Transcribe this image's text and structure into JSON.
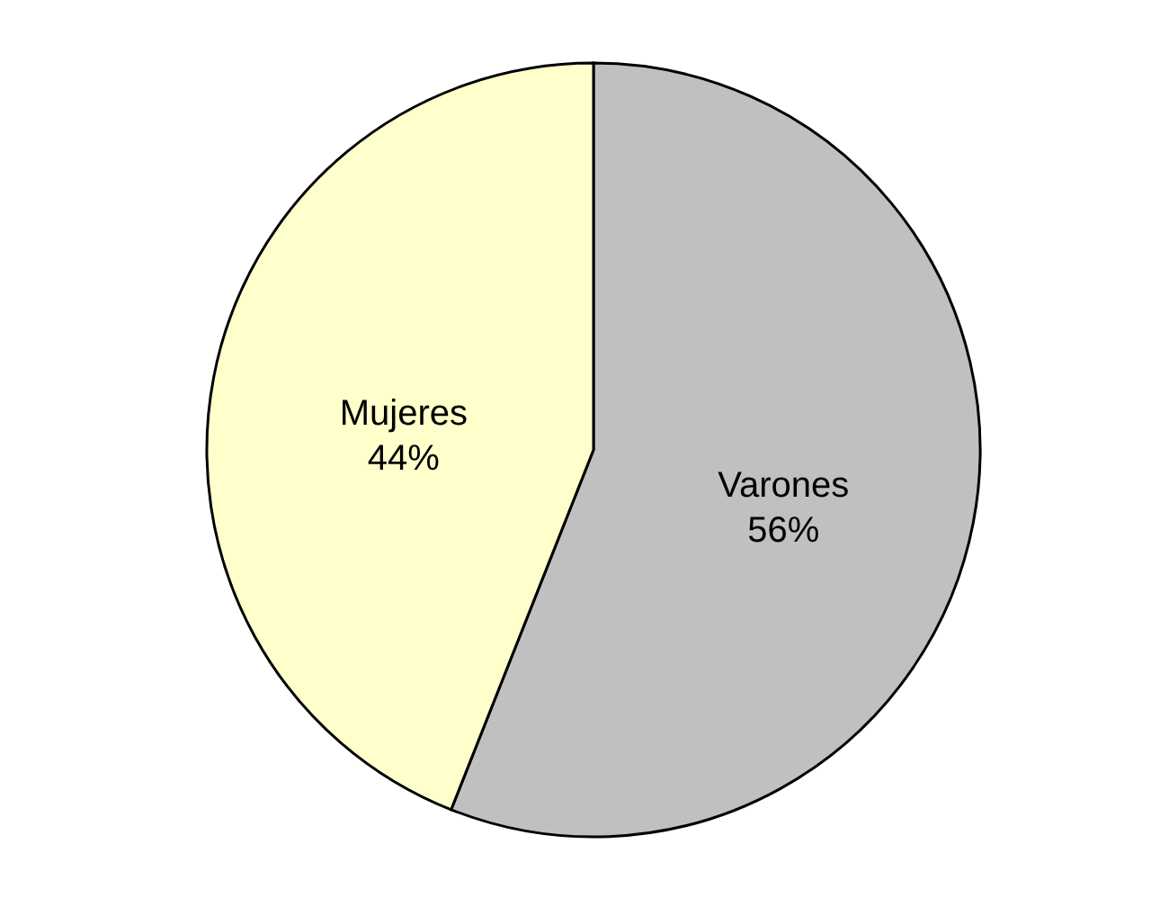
{
  "chart_data": {
    "type": "pie",
    "categories": [
      "Varones",
      "Mujeres"
    ],
    "values": [
      56,
      44
    ],
    "colors": [
      "#c0c0c0",
      "#ffffcc"
    ],
    "value_labels": [
      "56%",
      "44%"
    ]
  }
}
